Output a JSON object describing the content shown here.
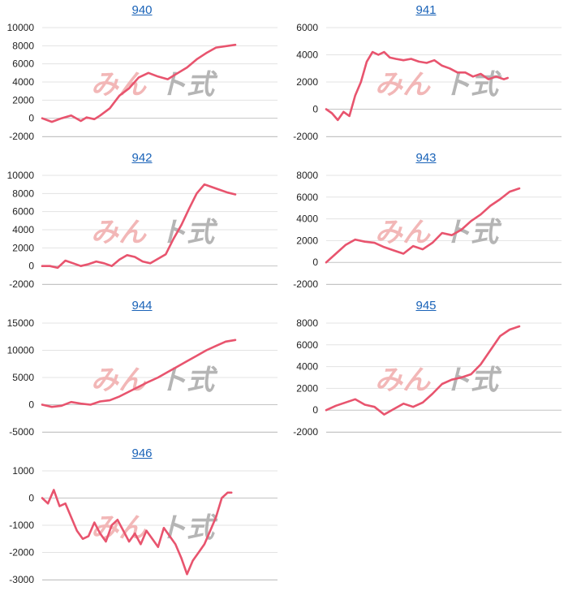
{
  "watermark": {
    "part1": "みん",
    "part2": "ト式"
  },
  "colors": {
    "series": "#e8546e",
    "title_link": "#1a63b8",
    "grid": "#e3e3e3",
    "axis": "#c4c4c4"
  },
  "chart_data": [
    {
      "type": "line",
      "title": "940",
      "ylim": [
        -2000,
        10000
      ],
      "yticks": [
        -2000,
        0,
        2000,
        4000,
        6000,
        8000,
        10000
      ],
      "grid": true,
      "x": [
        0,
        5,
        10,
        15,
        20,
        23,
        27,
        30,
        35,
        40,
        45,
        50,
        55,
        60,
        65,
        68,
        75,
        80,
        85,
        90,
        100
      ],
      "values": [
        0,
        -400,
        0,
        300,
        -300,
        100,
        -100,
        300,
        1100,
        2500,
        3300,
        4500,
        5000,
        4600,
        4300,
        4700,
        5600,
        6500,
        7200,
        7800,
        8100
      ]
    },
    {
      "type": "line",
      "title": "941",
      "ylim": [
        -2000,
        6000
      ],
      "yticks": [
        -2000,
        0,
        2000,
        4000,
        6000
      ],
      "grid": true,
      "x": [
        0,
        3,
        6,
        9,
        12,
        15,
        18,
        21,
        24,
        27,
        30,
        33,
        36,
        40,
        44,
        48,
        52,
        56,
        60,
        64,
        68,
        72,
        76,
        80,
        84,
        88,
        92,
        94
      ],
      "values": [
        0,
        -300,
        -800,
        -200,
        -500,
        1000,
        2000,
        3500,
        4200,
        4000,
        4200,
        3800,
        3700,
        3600,
        3700,
        3500,
        3400,
        3600,
        3200,
        3000,
        2700,
        2700,
        2400,
        2600,
        2200,
        2400,
        2200,
        2300
      ]
    },
    {
      "type": "line",
      "title": "942",
      "ylim": [
        -2000,
        10000
      ],
      "yticks": [
        -2000,
        0,
        2000,
        4000,
        6000,
        8000,
        10000
      ],
      "grid": true,
      "x": [
        0,
        4,
        8,
        12,
        16,
        20,
        24,
        28,
        32,
        36,
        40,
        44,
        48,
        52,
        56,
        60,
        64,
        68,
        72,
        76,
        80,
        84,
        88,
        92,
        96,
        100
      ],
      "values": [
        0,
        0,
        -200,
        600,
        300,
        0,
        200,
        500,
        300,
        0,
        700,
        1200,
        1000,
        500,
        300,
        800,
        1300,
        3000,
        4500,
        6300,
        8000,
        9000,
        8700,
        8400,
        8100,
        7900
      ]
    },
    {
      "type": "line",
      "title": "943",
      "ylim": [
        -2000,
        8000
      ],
      "yticks": [
        -2000,
        0,
        2000,
        4000,
        6000,
        8000
      ],
      "grid": true,
      "x": [
        0,
        5,
        10,
        15,
        20,
        25,
        30,
        35,
        40,
        45,
        50,
        55,
        60,
        65,
        70,
        75,
        80,
        85,
        90,
        95,
        100
      ],
      "values": [
        0,
        800,
        1600,
        2100,
        1900,
        1800,
        1400,
        1100,
        800,
        1500,
        1200,
        1800,
        2700,
        2500,
        3000,
        3800,
        4400,
        5200,
        5800,
        6500,
        6800
      ]
    },
    {
      "type": "line",
      "title": "944",
      "ylim": [
        -5000,
        15000
      ],
      "yticks": [
        -5000,
        0,
        5000,
        10000,
        15000
      ],
      "grid": true,
      "x": [
        0,
        5,
        10,
        15,
        20,
        25,
        30,
        35,
        40,
        45,
        50,
        55,
        60,
        65,
        70,
        75,
        80,
        85,
        90,
        95,
        100
      ],
      "values": [
        0,
        -400,
        -200,
        500,
        200,
        0,
        600,
        800,
        1500,
        2400,
        3300,
        4200,
        5000,
        6000,
        7000,
        8000,
        9000,
        10000,
        10800,
        11600,
        11900
      ]
    },
    {
      "type": "line",
      "title": "945",
      "ylim": [
        -2000,
        8000
      ],
      "yticks": [
        -2000,
        0,
        2000,
        4000,
        6000,
        8000
      ],
      "grid": true,
      "x": [
        0,
        5,
        10,
        15,
        20,
        25,
        30,
        35,
        40,
        45,
        50,
        55,
        60,
        65,
        70,
        75,
        80,
        85,
        90,
        95,
        100
      ],
      "values": [
        0,
        400,
        700,
        1000,
        500,
        300,
        -400,
        100,
        600,
        300,
        700,
        1500,
        2400,
        2800,
        3000,
        3300,
        4200,
        5500,
        6800,
        7400,
        7700
      ]
    },
    {
      "type": "line",
      "title": "946",
      "ylim": [
        -3000,
        1000
      ],
      "yticks": [
        -3000,
        -2000,
        -1000,
        0,
        1000
      ],
      "grid": true,
      "x": [
        0,
        3,
        6,
        9,
        12,
        15,
        18,
        21,
        24,
        27,
        30,
        33,
        36,
        39,
        42,
        45,
        48,
        51,
        54,
        57,
        60,
        63,
        66,
        69,
        72,
        75,
        78,
        81,
        84,
        87,
        90,
        93,
        96,
        98
      ],
      "values": [
        0,
        -200,
        300,
        -300,
        -200,
        -700,
        -1200,
        -1500,
        -1400,
        -900,
        -1300,
        -1600,
        -1000,
        -800,
        -1200,
        -1600,
        -1300,
        -1700,
        -1200,
        -1500,
        -1800,
        -1100,
        -1400,
        -1700,
        -2200,
        -2800,
        -2300,
        -2000,
        -1700,
        -1200,
        -700,
        0,
        200,
        200
      ]
    }
  ]
}
